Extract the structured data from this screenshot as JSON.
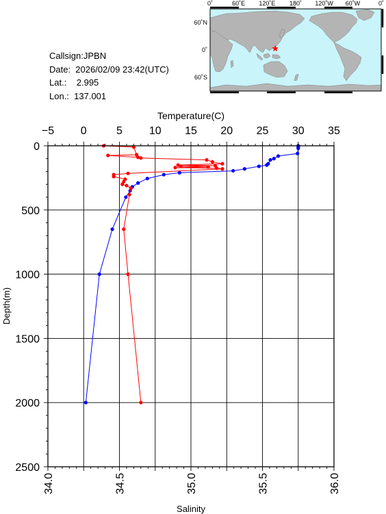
{
  "info": {
    "callsign": "Callsign:JPBN",
    "date": "Date:  2026/02/09 23:42(UTC)",
    "lat": "Lat.:    2.995",
    "lon": "Lon.:  137.001"
  },
  "map": {
    "top_labels": [
      "0˚",
      "60˚E",
      "120˚E",
      "180˚",
      "120˚W",
      "60˚W",
      "0˚"
    ],
    "lat_labels": [
      "60˚N",
      "0˚",
      "60˚S"
    ],
    "station": {
      "lon": 137.001,
      "lat": 2.995
    },
    "colors": {
      "ocean": "#c8f4fa",
      "land": "#b4b4b4",
      "marker": "#ff0000"
    }
  },
  "chart_data": {
    "type": "line",
    "ylabel": "Depth(m)",
    "ylim": [
      0,
      2500
    ],
    "yticks": [
      0,
      500,
      1000,
      1500,
      2000,
      2500
    ],
    "y_reversed": true,
    "top_axis": {
      "label": "Temperature(C)",
      "lim": [
        -5,
        35
      ],
      "ticks": [
        -5,
        0,
        5,
        10,
        15,
        20,
        25,
        30,
        35
      ]
    },
    "bottom_axis": {
      "label": "Salinity",
      "lim": [
        34.0,
        36.0
      ],
      "ticks": [
        "34.0",
        "34.5",
        "35.0",
        "35.5",
        "36.0"
      ]
    },
    "grid": true,
    "series": [
      {
        "color": "#0000ff",
        "axis": "top",
        "points": [
          [
            30.0,
            0
          ],
          [
            30.0,
            10
          ],
          [
            30.0,
            20
          ],
          [
            29.9,
            60
          ],
          [
            27.2,
            80
          ],
          [
            26.6,
            100
          ],
          [
            26.1,
            110
          ],
          [
            25.8,
            140
          ],
          [
            25.6,
            150
          ],
          [
            24.5,
            160
          ],
          [
            22.5,
            180
          ],
          [
            20.9,
            195
          ],
          [
            13.4,
            210
          ],
          [
            11.2,
            225
          ],
          [
            8.9,
            255
          ],
          [
            7.6,
            290
          ],
          [
            6.8,
            320
          ],
          [
            6.5,
            350
          ],
          [
            5.9,
            400
          ],
          [
            4.0,
            650
          ],
          [
            2.2,
            1000
          ],
          [
            0.3,
            2000
          ]
        ]
      },
      {
        "color": "#ff0000",
        "axis": "bottom",
        "points": [
          [
            34.39,
            0
          ],
          [
            34.6,
            10
          ],
          [
            34.62,
            70
          ],
          [
            34.42,
            75
          ],
          [
            34.63,
            90
          ],
          [
            34.65,
            95
          ],
          [
            35.11,
            110
          ],
          [
            35.15,
            125
          ],
          [
            35.22,
            140
          ],
          [
            34.91,
            150
          ],
          [
            35.17,
            155
          ],
          [
            34.93,
            160
          ],
          [
            35.12,
            165
          ],
          [
            34.89,
            170
          ],
          [
            35.18,
            175
          ],
          [
            35.22,
            180
          ],
          [
            34.56,
            215
          ],
          [
            34.46,
            225
          ],
          [
            34.46,
            240
          ],
          [
            34.54,
            260
          ],
          [
            34.53,
            280
          ],
          [
            34.52,
            300
          ],
          [
            34.55,
            310
          ],
          [
            34.58,
            330
          ],
          [
            34.57,
            380
          ],
          [
            34.53,
            650
          ],
          [
            34.56,
            1000
          ],
          [
            34.65,
            2000
          ]
        ]
      }
    ]
  }
}
